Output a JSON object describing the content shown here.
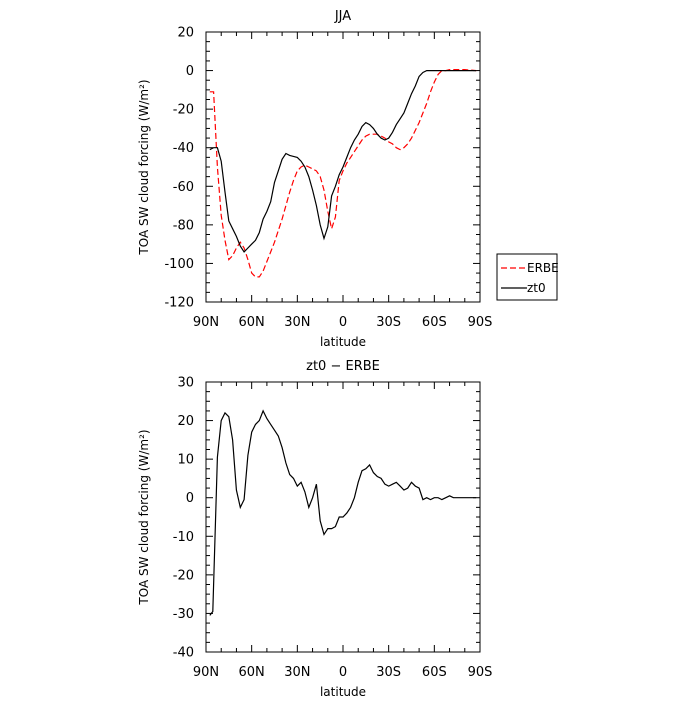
{
  "chart_data": [
    {
      "type": "line",
      "title": "JJA",
      "xlabel": "latitude",
      "ylabel": "TOA SW cloud forcing (W/m²)",
      "ylim": [
        -120,
        20
      ],
      "xlim": [
        -90,
        90
      ],
      "x_ticks": [
        -90,
        -60,
        -30,
        0,
        30,
        60,
        90
      ],
      "x_tick_labels": [
        "90N",
        "60N",
        "30N",
        "0",
        "30S",
        "60S",
        "90S"
      ],
      "y_ticks": [
        -120,
        -100,
        -80,
        -60,
        -40,
        -20,
        0,
        20
      ],
      "legend": {
        "position": "right",
        "items": [
          "ERBE",
          "zt0"
        ]
      },
      "series": [
        {
          "name": "ERBE",
          "color": "#ff0000",
          "dash": "dashed",
          "x": [
            -87.5,
            -85,
            -82.5,
            -80,
            -77.5,
            -75,
            -72.5,
            -70,
            -67.5,
            -65,
            -62.5,
            -60,
            -57.5,
            -55,
            -52.5,
            -50,
            -47.5,
            -45,
            -42.5,
            -40,
            -37.5,
            -35,
            -32.5,
            -30,
            -27.5,
            -25,
            -22.5,
            -20,
            -17.5,
            -15,
            -12.5,
            -10,
            -7.5,
            -5,
            -2.5,
            0,
            2.5,
            5,
            7.5,
            10,
            12.5,
            15,
            17.5,
            20,
            22.5,
            25,
            27.5,
            30,
            32.5,
            35,
            37.5,
            40,
            42.5,
            45,
            47.5,
            50,
            52.5,
            55,
            57.5,
            60,
            62.5,
            65,
            67.5,
            70,
            72.5,
            75,
            77.5,
            80,
            82.5,
            85,
            87.5
          ],
          "values": [
            -11,
            -11,
            -50,
            -75,
            -88,
            -98,
            -96,
            -92,
            -89,
            -92,
            -98,
            -105,
            -107,
            -107,
            -104,
            -99,
            -94,
            -89,
            -83,
            -77,
            -70,
            -63,
            -57,
            -52,
            -50,
            -49,
            -50,
            -51,
            -52,
            -55,
            -62,
            -73,
            -82,
            -76,
            -57,
            -52,
            -48,
            -45,
            -42,
            -39,
            -36,
            -34,
            -33,
            -33,
            -33,
            -34,
            -35,
            -37,
            -38,
            -40,
            -41,
            -40,
            -38,
            -35,
            -31,
            -27,
            -22,
            -17,
            -11,
            -6,
            -2,
            0,
            0,
            0.5,
            0.5,
            0.5,
            0.5,
            0.5,
            0.3,
            0.2,
            0
          ]
        },
        {
          "name": "zt0",
          "color": "#000000",
          "dash": "solid",
          "x": [
            -87.5,
            -85,
            -82.5,
            -80,
            -77.5,
            -75,
            -72.5,
            -70,
            -67.5,
            -65,
            -62.5,
            -60,
            -57.5,
            -55,
            -52.5,
            -50,
            -47.5,
            -45,
            -42.5,
            -40,
            -37.5,
            -35,
            -32.5,
            -30,
            -27.5,
            -25,
            -22.5,
            -20,
            -17.5,
            -15,
            -12.5,
            -10,
            -7.5,
            -5,
            -2.5,
            0,
            2.5,
            5,
            7.5,
            10,
            12.5,
            15,
            17.5,
            20,
            22.5,
            25,
            27.5,
            30,
            32.5,
            35,
            37.5,
            40,
            42.5,
            45,
            47.5,
            50,
            52.5,
            55,
            57.5,
            60,
            62.5,
            65,
            67.5,
            70,
            72.5,
            75,
            77.5,
            80,
            82.5,
            85,
            87.5
          ],
          "values": [
            -41,
            -40,
            -40,
            -47,
            -63,
            -78,
            -82,
            -86,
            -91,
            -94,
            -92,
            -90,
            -88,
            -84,
            -77,
            -73,
            -68,
            -58,
            -52,
            -46,
            -43,
            -44,
            -44.5,
            -45,
            -47,
            -50,
            -55,
            -62,
            -70,
            -80,
            -87,
            -81,
            -65,
            -60,
            -54,
            -50,
            -45,
            -40,
            -36,
            -33,
            -29,
            -27,
            -28,
            -30,
            -33,
            -35,
            -36,
            -35,
            -32,
            -28,
            -25,
            -22,
            -17,
            -12,
            -8,
            -3,
            -1,
            0,
            0,
            0,
            0,
            0,
            0,
            0,
            0,
            0,
            0,
            0,
            0,
            0,
            0
          ]
        }
      ]
    },
    {
      "type": "line",
      "title": "zt0 − ERBE",
      "xlabel": "latitude",
      "ylabel": "TOA SW cloud forcing (W/m²)",
      "ylim": [
        -40,
        30
      ],
      "xlim": [
        -90,
        90
      ],
      "x_ticks": [
        -90,
        -60,
        -30,
        0,
        30,
        60,
        90
      ],
      "x_tick_labels": [
        "90N",
        "60N",
        "30N",
        "0",
        "30S",
        "60S",
        "90S"
      ],
      "y_ticks": [
        -40,
        -30,
        -20,
        -10,
        0,
        10,
        20,
        30
      ],
      "series": [
        {
          "color": "#000000",
          "dash": "solid",
          "x": [
            -87.5,
            -85.5,
            -82.5,
            -80,
            -77.5,
            -75,
            -72.5,
            -70,
            -67.5,
            -65,
            -62.5,
            -60,
            -57.5,
            -55,
            -52.5,
            -50,
            -47.5,
            -45,
            -42.5,
            -40,
            -37.5,
            -35,
            -32.5,
            -30,
            -27.5,
            -25,
            -22.5,
            -20,
            -17.5,
            -15,
            -12.5,
            -10,
            -7.5,
            -5,
            -2.5,
            0,
            2.5,
            5,
            7.5,
            10,
            12.5,
            15,
            17.5,
            20,
            22.5,
            25,
            27.5,
            30,
            32.5,
            35,
            37.5,
            40,
            42.5,
            45,
            47.5,
            50,
            52.5,
            55,
            57.5,
            60,
            62.5,
            65,
            67.5,
            70,
            72.5,
            75,
            77.5,
            80,
            82.5,
            85,
            87.5
          ],
          "values": [
            -30.5,
            -29.5,
            10.5,
            20,
            22,
            21,
            15,
            2,
            -2.5,
            -0.5,
            11,
            17,
            19,
            20,
            22.5,
            20.5,
            19,
            17.5,
            16,
            13,
            9,
            6,
            5,
            3,
            4,
            1.5,
            -2.5,
            0,
            3.5,
            -6,
            -9.5,
            -8,
            -8,
            -7.5,
            -5,
            -5,
            -4,
            -2.5,
            0,
            4,
            7,
            7.5,
            8.5,
            6.5,
            5.5,
            5,
            3.5,
            3,
            3.5,
            4,
            3,
            2,
            2.5,
            4,
            3,
            2.5,
            -0.5,
            0,
            -0.5,
            0,
            0,
            -0.5,
            0,
            0.5,
            0,
            0,
            0,
            0,
            0,
            0,
            0
          ]
        }
      ]
    }
  ]
}
